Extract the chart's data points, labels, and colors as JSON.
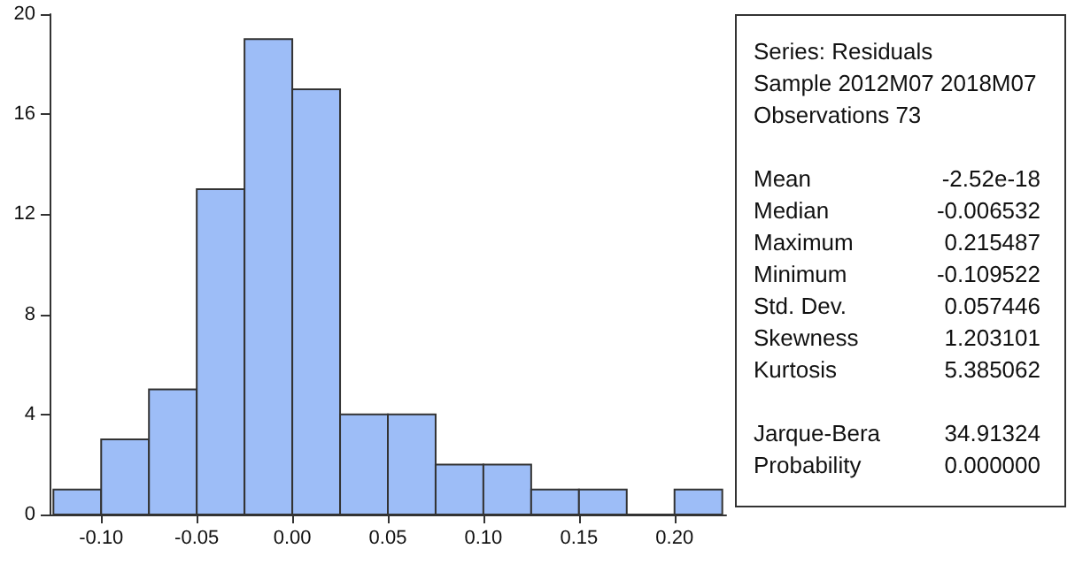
{
  "chart_data": {
    "type": "histogram",
    "bins": [
      -0.125,
      -0.1,
      -0.075,
      -0.05,
      -0.025,
      0,
      0.025,
      0.05,
      0.075,
      0.1,
      0.125,
      0.15,
      0.175,
      0.2,
      0.225
    ],
    "values": [
      1,
      3,
      5,
      13,
      19,
      17,
      4,
      4,
      2,
      2,
      1,
      1,
      0,
      1
    ],
    "color": "#9dbdf7",
    "xlim": [
      -0.127,
      0.227
    ],
    "xticks": [
      {
        "value": -0.1,
        "label": "-0.10"
      },
      {
        "value": -0.05,
        "label": "-0.05"
      },
      {
        "value": 0,
        "label": "0.00"
      },
      {
        "value": 0.05,
        "label": "0.05"
      },
      {
        "value": 0.1,
        "label": "0.10"
      },
      {
        "value": 0.15,
        "label": "0.15"
      },
      {
        "value": 0.2,
        "label": "0.20"
      }
    ],
    "ylim": [
      0,
      20
    ],
    "yticks": [
      0,
      4,
      8,
      12,
      16,
      20
    ],
    "grid": false,
    "annotations": [
      "Series: Residuals",
      "Sample 2012M07 2018M07",
      "Observations 73",
      "Mean",
      "-2.52e-18",
      "Median",
      "-0.006532",
      "Maximum",
      "0.215487",
      "Minimum",
      "-0.109522",
      "Std. Dev.",
      "0.057446",
      "Skewness",
      "1.203101",
      "Kurtosis",
      "5.385062",
      "Jarque-Bera",
      "34.91324",
      "Probability",
      "0.000000"
    ]
  }
}
